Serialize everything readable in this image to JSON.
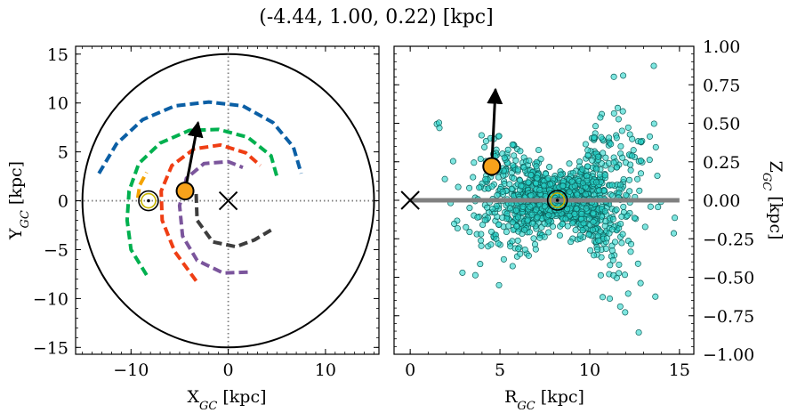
{
  "title": "(-4.44, 1.00, 0.22) [kpc]",
  "chart_data": [
    {
      "type": "line",
      "panel": "left",
      "xlabel": "X_GC [kpc]",
      "ylabel": "Y_GC [kpc]",
      "xlim": [
        -15.7,
        15.5
      ],
      "ylim": [
        -15.7,
        15.8
      ],
      "xticks": [
        -10,
        0,
        10
      ],
      "xtick_labels": [
        "−10",
        "0",
        "10"
      ],
      "yticks": [
        -15,
        -10,
        -5,
        0,
        5,
        10,
        15
      ],
      "ytick_labels": [
        "−15",
        "−10",
        "−5",
        "0",
        "5",
        "10",
        "15"
      ],
      "grid": false,
      "circle": {
        "center": [
          0,
          0
        ],
        "radius": 15,
        "color": "#000000"
      },
      "crosshair": {
        "x": 0,
        "y": 0,
        "style": "dotted",
        "color": "#7f7f7f"
      },
      "spiral_arms": [
        {
          "color": "#0b5fa5",
          "points": [
            [
              -13.3,
              2.8
            ],
            [
              -11.5,
              5.8
            ],
            [
              -8.8,
              8.3
            ],
            [
              -5.5,
              9.7
            ],
            [
              -2.0,
              10.1
            ],
            [
              1.5,
              9.7
            ],
            [
              4.6,
              8.0
            ],
            [
              6.7,
              5.5
            ],
            [
              7.5,
              2.8
            ]
          ]
        },
        {
          "color": "#00b04f",
          "points": [
            [
              -8.4,
              -7.6
            ],
            [
              -10.0,
              -5.0
            ],
            [
              -10.4,
              -2.0
            ],
            [
              -10.2,
              1.0
            ],
            [
              -9.2,
              3.8
            ],
            [
              -7.0,
              5.9
            ],
            [
              -4.0,
              7.2
            ],
            [
              -1.0,
              7.3
            ],
            [
              2.0,
              6.5
            ],
            [
              4.4,
              4.6
            ],
            [
              5.0,
              2.5
            ]
          ]
        },
        {
          "color": "#f4a300",
          "points": [
            [
              -9.3,
              0.3
            ],
            [
              -9.1,
              1.6
            ],
            [
              -8.4,
              2.9
            ]
          ]
        },
        {
          "color": "#ef3e14",
          "points": [
            [
              -3.3,
              -8.2
            ],
            [
              -5.5,
              -5.2
            ],
            [
              -6.8,
              -2.0
            ],
            [
              -6.9,
              1.0
            ],
            [
              -5.8,
              3.6
            ],
            [
              -3.5,
              5.3
            ],
            [
              -0.8,
              5.7
            ],
            [
              1.8,
              4.9
            ],
            [
              3.3,
              3.6
            ]
          ]
        },
        {
          "color": "#7b559c",
          "points": [
            [
              2.0,
              -7.3
            ],
            [
              -0.5,
              -7.4
            ],
            [
              -3.2,
              -6.1
            ],
            [
              -4.7,
              -3.6
            ],
            [
              -5.0,
              -0.5
            ],
            [
              -4.3,
              2.3
            ],
            [
              -2.5,
              3.8
            ],
            [
              0.0,
              4.0
            ],
            [
              1.5,
              3.4
            ]
          ]
        },
        {
          "color": "#3d3d3d",
          "points": [
            [
              -3.3,
              0.7
            ],
            [
              -3.2,
              -2.0
            ],
            [
              -1.6,
              -4.2
            ],
            [
              0.8,
              -4.7
            ],
            [
              2.7,
              -4.0
            ],
            [
              4.4,
              -3.0
            ]
          ]
        }
      ],
      "sun": {
        "x": -8.2,
        "y": 0.0
      },
      "target": {
        "x": -4.44,
        "y": 1.0,
        "color": "#f7a21b",
        "arrow_to": [
          -3.1,
          8.0
        ]
      },
      "center_marker": {
        "x": 0,
        "y": 0
      }
    },
    {
      "type": "scatter",
      "panel": "right",
      "xlabel": "R_GC [kpc]",
      "ylabel": "Z_GC [kpc]",
      "xlim": [
        -0.9,
        15.8
      ],
      "ylim": [
        -1.0,
        1.0
      ],
      "xticks": [
        0,
        5,
        10,
        15
      ],
      "xtick_labels": [
        "0",
        "5",
        "10",
        "15"
      ],
      "yticks": [
        -1.0,
        -0.75,
        -0.5,
        -0.25,
        0.0,
        0.25,
        0.5,
        0.75,
        1.0
      ],
      "ytick_labels": [
        "−1.00",
        "−0.75",
        "−0.50",
        "−0.25",
        "0.00",
        "0.25",
        "0.50",
        "0.75",
        "1.00"
      ],
      "grid": false,
      "point_color": "#28d6cc",
      "point_count": 1500,
      "distribution": {
        "center_R": 8.2,
        "center_Z": 0.0,
        "sigma_R": 2.2,
        "sigma_Z_near": 0.06,
        "sigma_Z_far": 0.35
      },
      "disk_line": {
        "x": [
          0,
          15
        ],
        "y": 0.0,
        "color": "#808080"
      },
      "sun": {
        "x": 8.2,
        "y": 0.0
      },
      "target": {
        "x": 4.54,
        "y": 0.22,
        "color": "#f7a21b",
        "arrow_to": [
          4.75,
          0.72
        ]
      },
      "center_marker": {
        "x": 0,
        "y": 0
      }
    }
  ]
}
